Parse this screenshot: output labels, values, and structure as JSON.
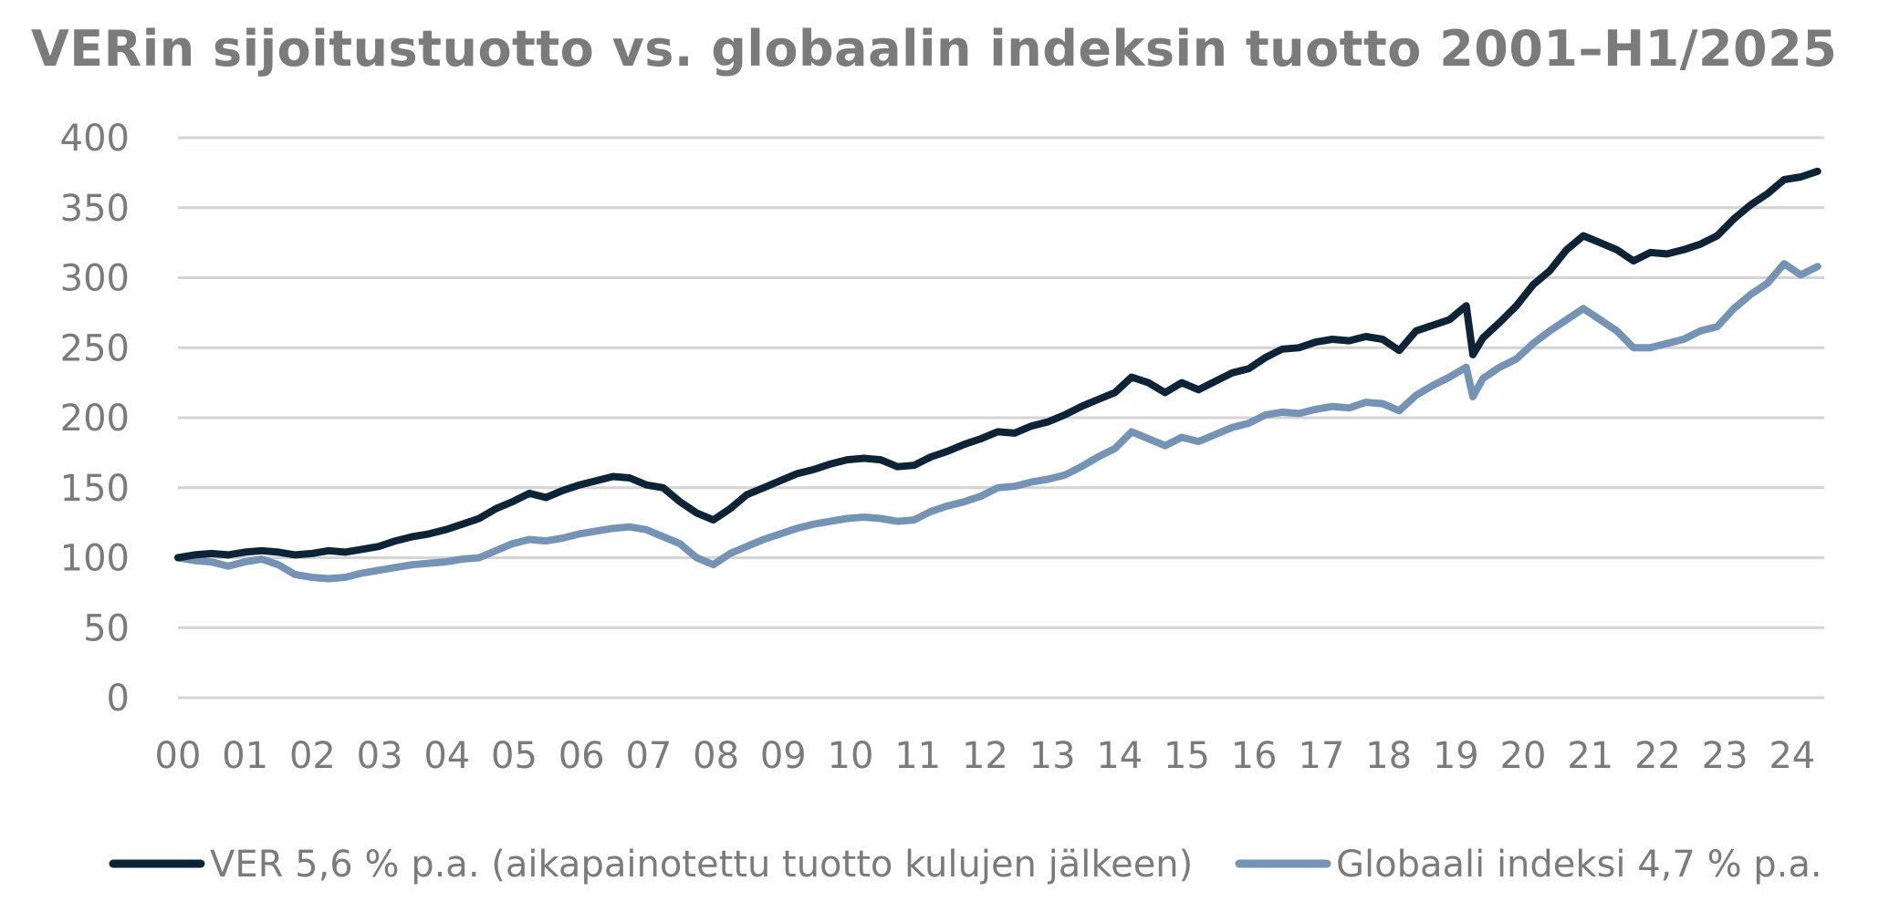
{
  "chart_data": {
    "type": "line",
    "title": "VERin sijoitustuotto vs. globaalin indeksin tuotto 2001–H1/2025",
    "xlabel": "",
    "ylabel": "",
    "ylim": [
      0,
      400
    ],
    "yticks": [
      "0",
      "50",
      "100",
      "150",
      "200",
      "250",
      "300",
      "350",
      "400"
    ],
    "xticks": [
      "00",
      "01",
      "02",
      "03",
      "04",
      "05",
      "06",
      "07",
      "08",
      "09",
      "10",
      "11",
      "12",
      "13",
      "14",
      "15",
      "16",
      "17",
      "18",
      "19",
      "20",
      "21",
      "22",
      "23",
      "24"
    ],
    "grid": "horizontal",
    "legend_position": "bottom",
    "series": [
      {
        "name": "VER 5,6 % p.a. (aikapainotettu tuotto kulujen jälkeen)",
        "color": "#0d2437",
        "points": [
          [
            0.0,
            100
          ],
          [
            0.25,
            102
          ],
          [
            0.5,
            103
          ],
          [
            0.75,
            102
          ],
          [
            1.0,
            104
          ],
          [
            1.25,
            105
          ],
          [
            1.5,
            104
          ],
          [
            1.75,
            102
          ],
          [
            2.0,
            103
          ],
          [
            2.25,
            105
          ],
          [
            2.5,
            104
          ],
          [
            2.75,
            106
          ],
          [
            3.0,
            108
          ],
          [
            3.25,
            112
          ],
          [
            3.5,
            115
          ],
          [
            3.75,
            117
          ],
          [
            4.0,
            120
          ],
          [
            4.25,
            124
          ],
          [
            4.5,
            128
          ],
          [
            4.75,
            135
          ],
          [
            5.0,
            140
          ],
          [
            5.25,
            146
          ],
          [
            5.5,
            143
          ],
          [
            5.75,
            148
          ],
          [
            6.0,
            152
          ],
          [
            6.25,
            155
          ],
          [
            6.5,
            158
          ],
          [
            6.75,
            157
          ],
          [
            7.0,
            152
          ],
          [
            7.25,
            150
          ],
          [
            7.5,
            140
          ],
          [
            7.75,
            132
          ],
          [
            8.0,
            127
          ],
          [
            8.25,
            135
          ],
          [
            8.5,
            145
          ],
          [
            8.75,
            150
          ],
          [
            9.0,
            155
          ],
          [
            9.25,
            160
          ],
          [
            9.5,
            163
          ],
          [
            9.75,
            167
          ],
          [
            10.0,
            170
          ],
          [
            10.25,
            171
          ],
          [
            10.5,
            170
          ],
          [
            10.75,
            165
          ],
          [
            11.0,
            166
          ],
          [
            11.25,
            172
          ],
          [
            11.5,
            176
          ],
          [
            11.75,
            181
          ],
          [
            12.0,
            185
          ],
          [
            12.25,
            190
          ],
          [
            12.5,
            189
          ],
          [
            12.75,
            194
          ],
          [
            13.0,
            197
          ],
          [
            13.25,
            202
          ],
          [
            13.5,
            208
          ],
          [
            13.75,
            213
          ],
          [
            14.0,
            218
          ],
          [
            14.25,
            229
          ],
          [
            14.5,
            225
          ],
          [
            14.75,
            218
          ],
          [
            15.0,
            225
          ],
          [
            15.25,
            220
          ],
          [
            15.5,
            226
          ],
          [
            15.75,
            232
          ],
          [
            16.0,
            235
          ],
          [
            16.25,
            243
          ],
          [
            16.5,
            249
          ],
          [
            16.75,
            250
          ],
          [
            17.0,
            254
          ],
          [
            17.25,
            256
          ],
          [
            17.5,
            255
          ],
          [
            17.75,
            258
          ],
          [
            18.0,
            256
          ],
          [
            18.25,
            248
          ],
          [
            18.5,
            262
          ],
          [
            18.75,
            266
          ],
          [
            19.0,
            270
          ],
          [
            19.25,
            280
          ],
          [
            19.35,
            245
          ],
          [
            19.5,
            257
          ],
          [
            19.75,
            268
          ],
          [
            20.0,
            280
          ],
          [
            20.25,
            295
          ],
          [
            20.5,
            305
          ],
          [
            20.75,
            320
          ],
          [
            21.0,
            330
          ],
          [
            21.25,
            325
          ],
          [
            21.5,
            320
          ],
          [
            21.75,
            312
          ],
          [
            22.0,
            318
          ],
          [
            22.25,
            317
          ],
          [
            22.5,
            320
          ],
          [
            22.75,
            324
          ],
          [
            23.0,
            330
          ],
          [
            23.25,
            342
          ],
          [
            23.5,
            352
          ],
          [
            23.75,
            360
          ],
          [
            24.0,
            370
          ],
          [
            24.25,
            372
          ],
          [
            24.5,
            376
          ]
        ]
      },
      {
        "name": "Globaali indeksi 4,7 % p.a.",
        "color": "#7493b5",
        "points": [
          [
            0.0,
            100
          ],
          [
            0.25,
            98
          ],
          [
            0.5,
            97
          ],
          [
            0.75,
            94
          ],
          [
            1.0,
            97
          ],
          [
            1.25,
            99
          ],
          [
            1.5,
            95
          ],
          [
            1.75,
            88
          ],
          [
            2.0,
            86
          ],
          [
            2.25,
            85
          ],
          [
            2.5,
            86
          ],
          [
            2.75,
            89
          ],
          [
            3.0,
            91
          ],
          [
            3.25,
            93
          ],
          [
            3.5,
            95
          ],
          [
            3.75,
            96
          ],
          [
            4.0,
            97
          ],
          [
            4.25,
            99
          ],
          [
            4.5,
            100
          ],
          [
            4.75,
            105
          ],
          [
            5.0,
            110
          ],
          [
            5.25,
            113
          ],
          [
            5.5,
            112
          ],
          [
            5.75,
            114
          ],
          [
            6.0,
            117
          ],
          [
            6.25,
            119
          ],
          [
            6.5,
            121
          ],
          [
            6.75,
            122
          ],
          [
            7.0,
            120
          ],
          [
            7.25,
            115
          ],
          [
            7.5,
            110
          ],
          [
            7.75,
            100
          ],
          [
            8.0,
            95
          ],
          [
            8.25,
            103
          ],
          [
            8.5,
            108
          ],
          [
            8.75,
            113
          ],
          [
            9.0,
            117
          ],
          [
            9.25,
            121
          ],
          [
            9.5,
            124
          ],
          [
            9.75,
            126
          ],
          [
            10.0,
            128
          ],
          [
            10.25,
            129
          ],
          [
            10.5,
            128
          ],
          [
            10.75,
            126
          ],
          [
            11.0,
            127
          ],
          [
            11.25,
            133
          ],
          [
            11.5,
            137
          ],
          [
            11.75,
            140
          ],
          [
            12.0,
            144
          ],
          [
            12.25,
            150
          ],
          [
            12.5,
            151
          ],
          [
            12.75,
            154
          ],
          [
            13.0,
            156
          ],
          [
            13.25,
            159
          ],
          [
            13.5,
            165
          ],
          [
            13.75,
            172
          ],
          [
            14.0,
            178
          ],
          [
            14.25,
            190
          ],
          [
            14.5,
            185
          ],
          [
            14.75,
            180
          ],
          [
            15.0,
            186
          ],
          [
            15.25,
            183
          ],
          [
            15.5,
            188
          ],
          [
            15.75,
            193
          ],
          [
            16.0,
            196
          ],
          [
            16.25,
            202
          ],
          [
            16.5,
            204
          ],
          [
            16.75,
            203
          ],
          [
            17.0,
            206
          ],
          [
            17.25,
            208
          ],
          [
            17.5,
            207
          ],
          [
            17.75,
            211
          ],
          [
            18.0,
            210
          ],
          [
            18.25,
            205
          ],
          [
            18.5,
            216
          ],
          [
            18.75,
            223
          ],
          [
            19.0,
            229
          ],
          [
            19.25,
            236
          ],
          [
            19.35,
            215
          ],
          [
            19.5,
            228
          ],
          [
            19.75,
            236
          ],
          [
            20.0,
            242
          ],
          [
            20.25,
            253
          ],
          [
            20.5,
            262
          ],
          [
            20.75,
            270
          ],
          [
            21.0,
            278
          ],
          [
            21.25,
            270
          ],
          [
            21.5,
            262
          ],
          [
            21.75,
            250
          ],
          [
            22.0,
            250
          ],
          [
            22.25,
            253
          ],
          [
            22.5,
            256
          ],
          [
            22.75,
            262
          ],
          [
            23.0,
            265
          ],
          [
            23.25,
            278
          ],
          [
            23.5,
            288
          ],
          [
            23.75,
            296
          ],
          [
            24.0,
            310
          ],
          [
            24.25,
            302
          ],
          [
            24.5,
            308
          ]
        ]
      }
    ]
  }
}
